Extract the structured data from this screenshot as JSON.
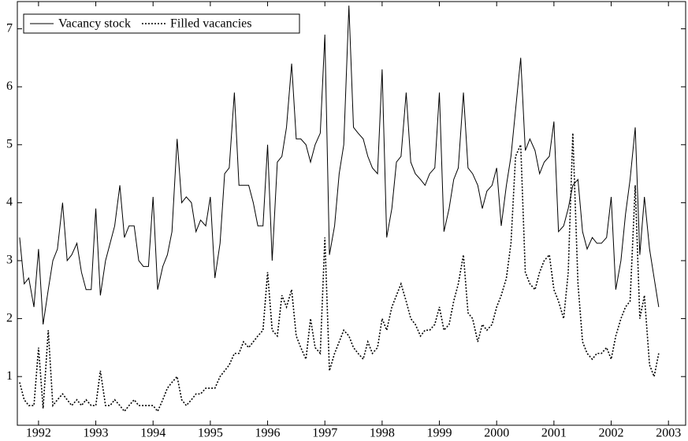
{
  "chart_data": {
    "type": "line",
    "x": [
      1991.67,
      1991.75,
      1991.83,
      1991.92,
      1992.0,
      1992.08,
      1992.17,
      1992.25,
      1992.33,
      1992.42,
      1992.5,
      1992.58,
      1992.67,
      1992.75,
      1992.83,
      1992.92,
      1993.0,
      1993.08,
      1993.17,
      1993.25,
      1993.33,
      1993.42,
      1993.5,
      1993.58,
      1993.67,
      1993.75,
      1993.83,
      1993.92,
      1994.0,
      1994.08,
      1994.17,
      1994.25,
      1994.33,
      1994.42,
      1994.5,
      1994.58,
      1994.67,
      1994.75,
      1994.83,
      1994.92,
      1995.0,
      1995.08,
      1995.17,
      1995.25,
      1995.33,
      1995.42,
      1995.5,
      1995.58,
      1995.67,
      1995.75,
      1995.83,
      1995.92,
      1996.0,
      1996.08,
      1996.17,
      1996.25,
      1996.33,
      1996.42,
      1996.5,
      1996.58,
      1996.67,
      1996.75,
      1996.83,
      1996.92,
      1997.0,
      1997.08,
      1997.17,
      1997.25,
      1997.33,
      1997.42,
      1997.5,
      1997.58,
      1997.67,
      1997.75,
      1997.83,
      1997.92,
      1998.0,
      1998.08,
      1998.17,
      1998.25,
      1998.33,
      1998.42,
      1998.5,
      1998.58,
      1998.67,
      1998.75,
      1998.83,
      1998.92,
      1999.0,
      1999.08,
      1999.17,
      1999.25,
      1999.33,
      1999.42,
      1999.5,
      1999.58,
      1999.67,
      1999.75,
      1999.83,
      1999.92,
      2000.0,
      2000.08,
      2000.17,
      2000.25,
      2000.33,
      2000.42,
      2000.5,
      2000.58,
      2000.67,
      2000.75,
      2000.83,
      2000.92,
      2001.0,
      2001.08,
      2001.17,
      2001.25,
      2001.33,
      2001.42,
      2001.5,
      2001.58,
      2001.67,
      2001.75,
      2001.83,
      2001.92,
      2002.0,
      2002.08,
      2002.17,
      2002.25,
      2002.33,
      2002.42,
      2002.5,
      2002.58,
      2002.67,
      2002.75,
      2002.83
    ],
    "series": [
      {
        "name": "Vacancy stock",
        "color": "#000000",
        "dash": "none",
        "values": [
          3.4,
          2.6,
          2.7,
          2.2,
          3.2,
          1.9,
          2.5,
          3.0,
          3.2,
          4.0,
          3.0,
          3.1,
          3.3,
          2.8,
          2.5,
          2.5,
          3.9,
          2.4,
          3.0,
          3.3,
          3.6,
          4.3,
          3.4,
          3.6,
          3.6,
          3.0,
          2.9,
          2.9,
          4.1,
          2.5,
          2.9,
          3.1,
          3.5,
          5.1,
          4.0,
          4.1,
          4.0,
          3.5,
          3.7,
          3.6,
          4.1,
          2.7,
          3.3,
          4.5,
          4.6,
          5.9,
          4.3,
          4.3,
          4.3,
          4.0,
          3.6,
          3.6,
          5.0,
          3.0,
          4.7,
          4.8,
          5.3,
          6.4,
          5.1,
          5.1,
          5.0,
          4.7,
          5.0,
          5.2,
          6.9,
          3.1,
          3.6,
          4.5,
          5.0,
          7.4,
          5.3,
          5.2,
          5.1,
          4.8,
          4.6,
          4.5,
          6.3,
          3.4,
          3.9,
          4.7,
          4.8,
          5.9,
          4.7,
          4.5,
          4.4,
          4.3,
          4.5,
          4.6,
          5.9,
          3.5,
          3.9,
          4.4,
          4.6,
          5.9,
          4.6,
          4.5,
          4.3,
          3.9,
          4.2,
          4.3,
          4.6,
          3.6,
          4.3,
          4.8,
          5.6,
          6.5,
          4.9,
          5.1,
          4.9,
          4.5,
          4.7,
          4.8,
          5.4,
          3.5,
          3.6,
          3.9,
          4.3,
          4.4,
          3.5,
          3.2,
          3.4,
          3.3,
          3.3,
          3.4,
          4.1,
          2.5,
          3.0,
          3.8,
          4.4,
          5.3,
          3.1,
          4.1,
          3.2,
          2.7,
          2.2
        ]
      },
      {
        "name": "Filled vacancies",
        "color": "#000000",
        "dash": "2,2",
        "values": [
          0.9,
          0.6,
          0.5,
          0.5,
          1.5,
          0.45,
          1.8,
          0.5,
          0.6,
          0.7,
          0.6,
          0.5,
          0.6,
          0.5,
          0.6,
          0.5,
          0.5,
          1.1,
          0.5,
          0.5,
          0.6,
          0.5,
          0.4,
          0.5,
          0.6,
          0.5,
          0.5,
          0.5,
          0.5,
          0.4,
          0.6,
          0.8,
          0.9,
          1.0,
          0.6,
          0.5,
          0.6,
          0.7,
          0.7,
          0.8,
          0.8,
          0.8,
          1.0,
          1.1,
          1.2,
          1.4,
          1.4,
          1.6,
          1.5,
          1.6,
          1.7,
          1.8,
          2.8,
          1.8,
          1.7,
          2.4,
          2.2,
          2.5,
          1.7,
          1.5,
          1.3,
          2.0,
          1.5,
          1.4,
          3.4,
          1.1,
          1.4,
          1.6,
          1.8,
          1.7,
          1.5,
          1.4,
          1.3,
          1.6,
          1.4,
          1.5,
          2.0,
          1.8,
          2.2,
          2.4,
          2.6,
          2.3,
          2.0,
          1.9,
          1.7,
          1.8,
          1.8,
          1.9,
          2.2,
          1.8,
          1.9,
          2.3,
          2.6,
          3.1,
          2.1,
          2.0,
          1.6,
          1.9,
          1.8,
          1.9,
          2.2,
          2.4,
          2.7,
          3.3,
          4.8,
          5.0,
          2.8,
          2.6,
          2.5,
          2.8,
          3.0,
          3.1,
          2.5,
          2.3,
          2.0,
          2.8,
          5.2,
          2.6,
          1.6,
          1.4,
          1.3,
          1.4,
          1.4,
          1.5,
          1.3,
          1.7,
          2.0,
          2.2,
          2.3,
          4.3,
          2.0,
          2.4,
          1.2,
          1.0,
          1.4
        ]
      }
    ],
    "xlim": [
      1991.63,
      2003.3
    ],
    "xticks": [
      1992,
      1993,
      1994,
      1995,
      1996,
      1997,
      1998,
      1999,
      2000,
      2001,
      2002,
      2003
    ],
    "ylim": [
      0.16,
      7.47
    ],
    "yticks": [
      1,
      2,
      3,
      4,
      5,
      6,
      7
    ],
    "legend": "top-left"
  }
}
